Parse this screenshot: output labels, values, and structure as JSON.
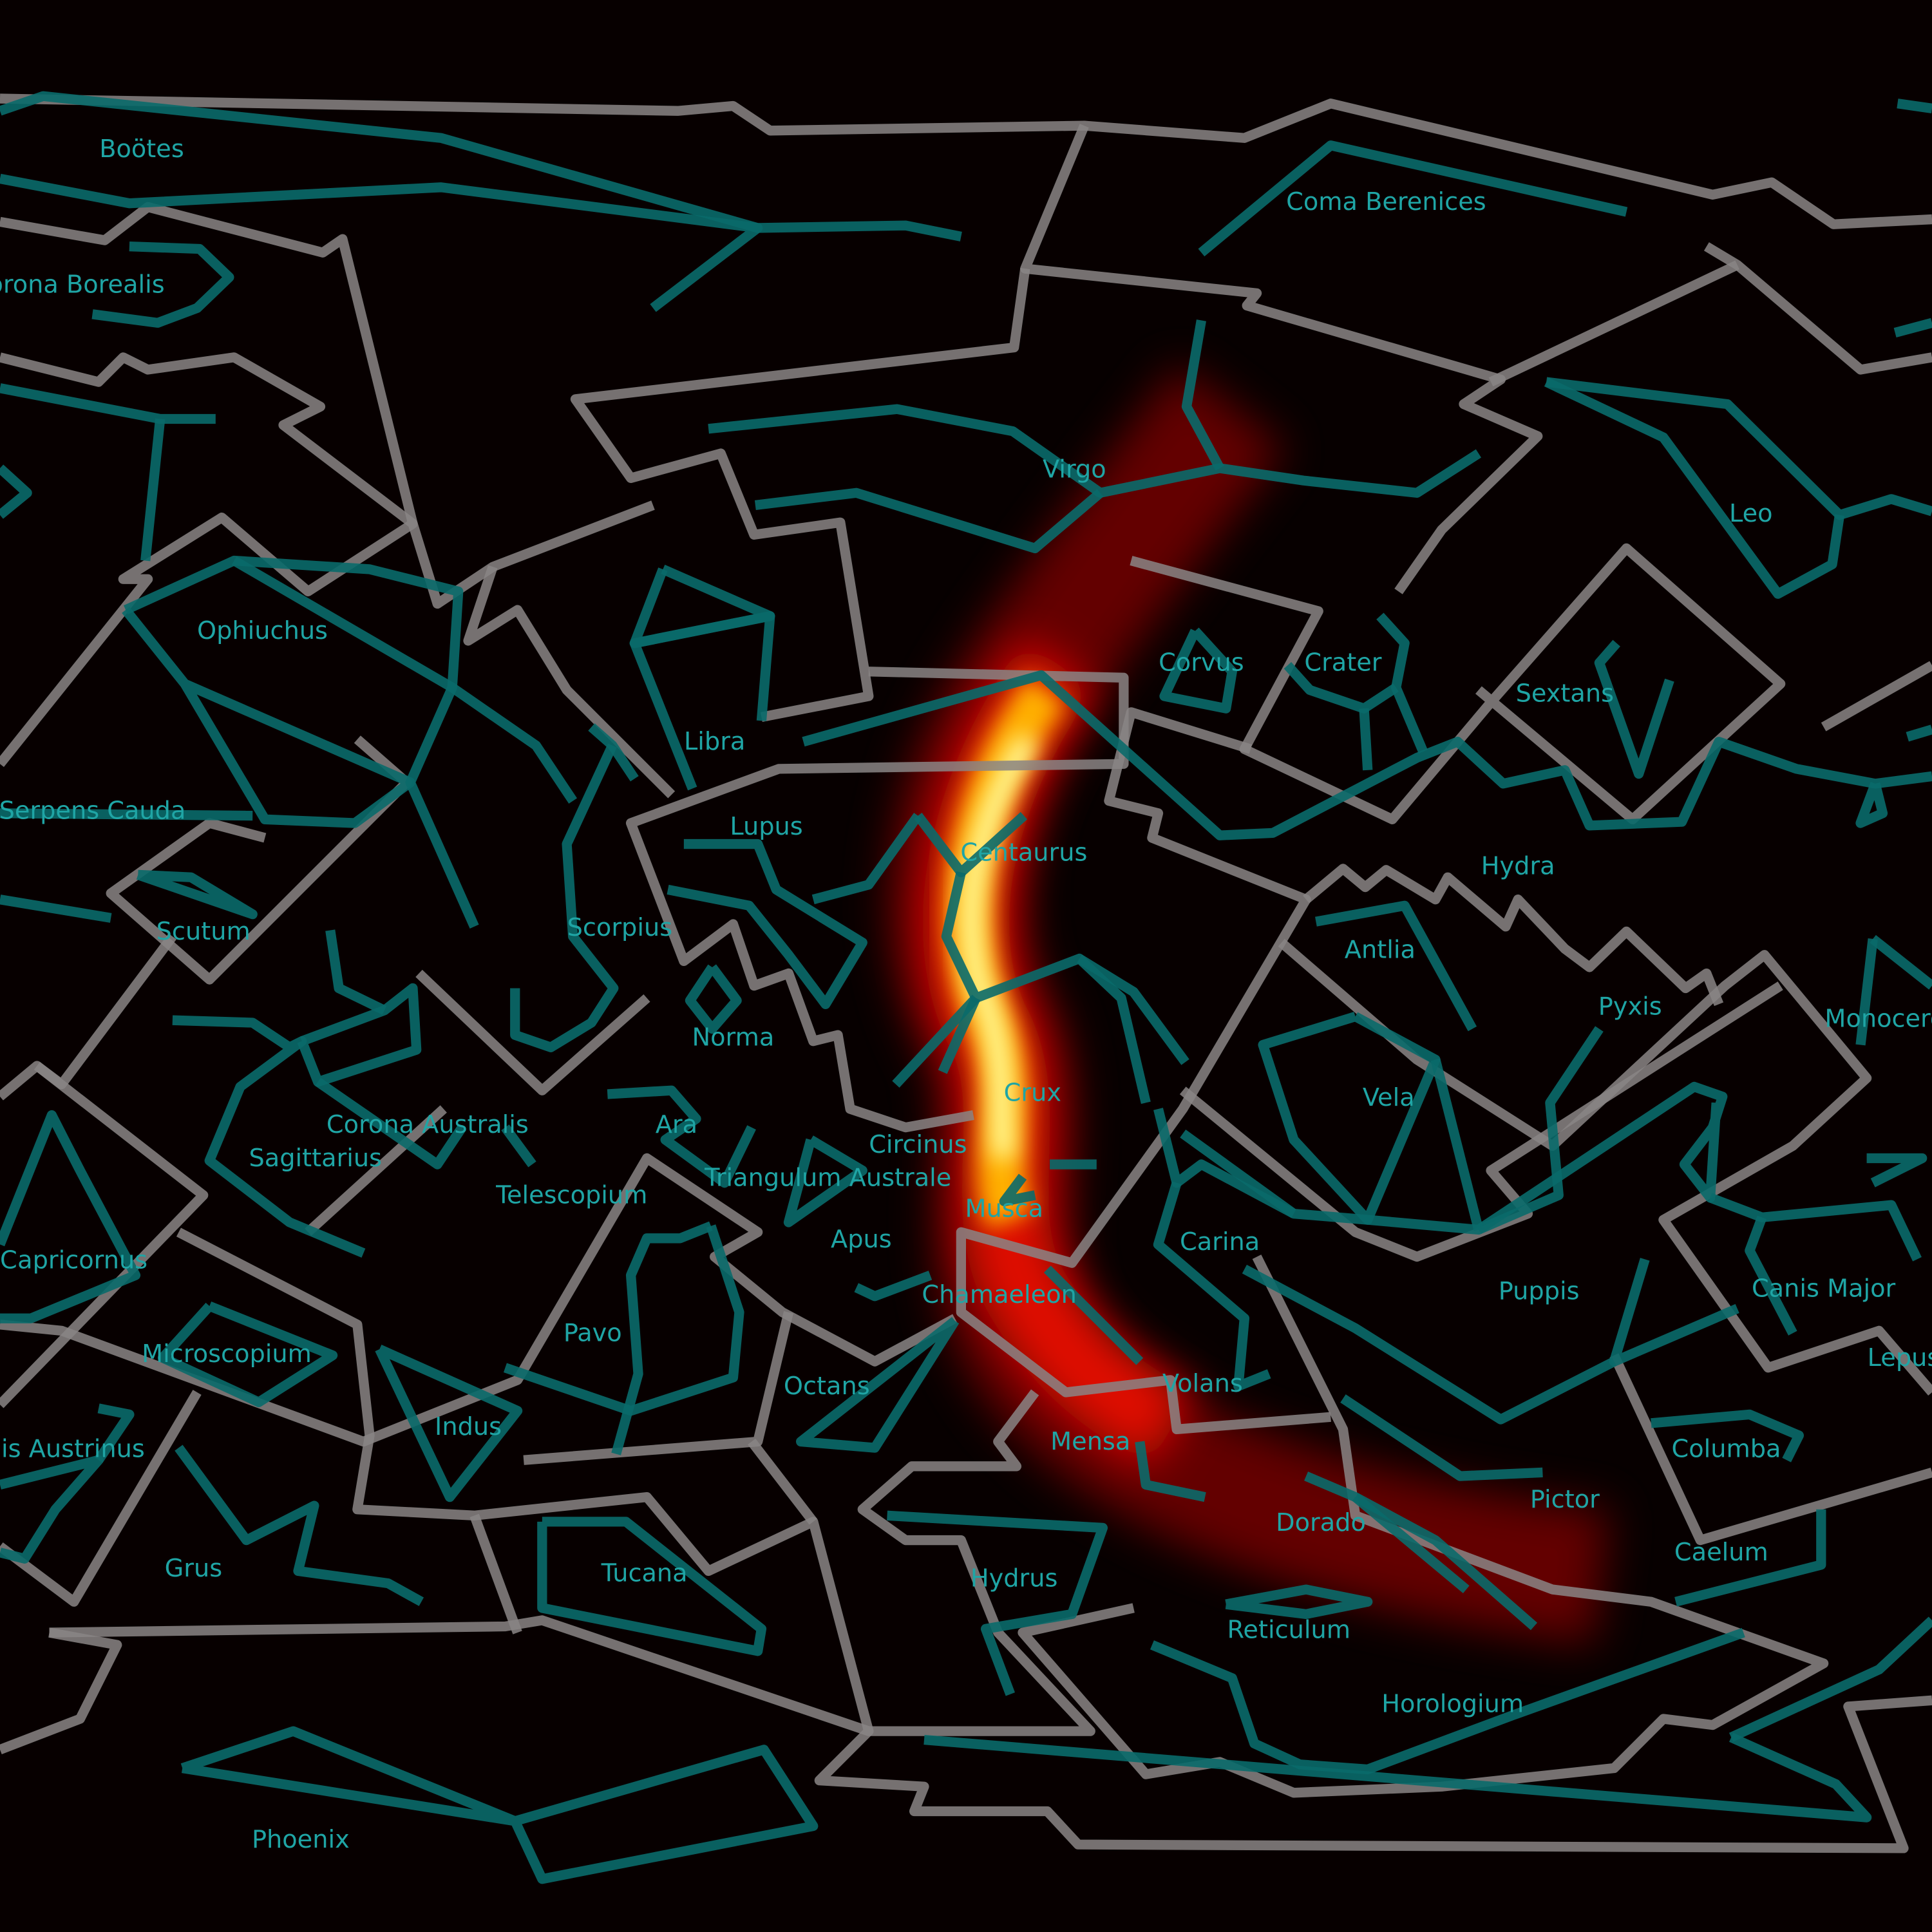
{
  "labels": [
    "Boötes",
    "Corona Borealis",
    "Coma Berenices",
    "Virgo",
    "Leo",
    "Ophiuchus",
    "Corvus",
    "Crater",
    "Sextans",
    "Libra",
    "Serpens Cauda",
    "Lupus",
    "Centaurus",
    "Hydra",
    "Scutum",
    "Scorpius",
    "Antlia",
    "Pyxis",
    "Monoceros",
    "Norma",
    "Crux",
    "Vela",
    "Corona Australis",
    "Ara",
    "Sagittarius",
    "Circinus",
    "Triangulum Australe",
    "Telescopium",
    "Musca",
    "Carina",
    "Apus",
    "Capricornus",
    "Puppis",
    "Canis Major",
    "Chamaeleon",
    "Pavo",
    "Microscopium",
    "Lepus",
    "Octans",
    "Volans",
    "Indus",
    "Mensa",
    "Piscis Austrinus",
    "Columba",
    "Pictor",
    "Dorado",
    "Caelum",
    "Grus",
    "Tucana",
    "Hydrus",
    "Reticulum",
    "Horologium",
    "Phoenix"
  ]
}
